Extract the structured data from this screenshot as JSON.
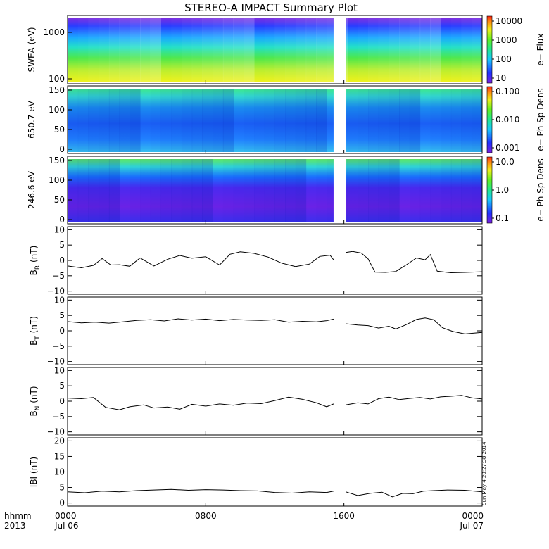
{
  "chart_data": {
    "title": "STEREO-A IMPACT Summary Plot",
    "stamp": "Sun May 4 20:27:38 2014",
    "time_axis": {
      "row1": [
        "0000",
        "0800",
        "1600",
        "0000"
      ],
      "row2": [
        "Jul 06",
        "",
        "",
        "Jul 07"
      ],
      "corner": [
        "hhmm",
        "2013"
      ],
      "range_hours": [
        0,
        24
      ],
      "data_gap_hours": [
        15.4,
        16.1
      ]
    },
    "panels": [
      {
        "type": "heatmap",
        "ylabel": "SWEA (eV)",
        "yscale": "log",
        "ylim": [
          100,
          1700
        ],
        "yticks": [
          "1000",
          "100"
        ],
        "colorbar": {
          "label": "e− Flux",
          "scale": "log",
          "ticks": [
            "10000",
            "1000",
            "100",
            "10"
          ]
        }
      },
      {
        "type": "heatmap",
        "ylabel": "650.7 eV",
        "ylim": [
          0,
          180
        ],
        "yticks": [
          "150",
          "100",
          "50",
          "0"
        ],
        "colorbar": {
          "label": "e− Ph Sp Dens",
          "scale": "log",
          "ticks": [
            "0.100",
            "0.010",
            "0.001"
          ]
        }
      },
      {
        "type": "heatmap",
        "ylabel": "246.6 eV",
        "ylim": [
          0,
          180
        ],
        "yticks": [
          "150",
          "100",
          "50",
          "0"
        ],
        "colorbar": {
          "label": "e− Ph Sp Dens",
          "scale": "log",
          "ticks": [
            "10.0",
            "1.0",
            "0.1"
          ]
        }
      },
      {
        "type": "line",
        "ylabel_main": "B",
        "ylabel_sub": "R",
        "ylabel_unit": "(nT)",
        "ylim": [
          -11,
          11
        ],
        "yticks": [
          "10",
          "5",
          "0",
          "−5",
          "−10"
        ],
        "x": [
          0,
          0.8,
          1.5,
          2.0,
          2.5,
          3.0,
          3.6,
          4.2,
          5.0,
          5.8,
          6.5,
          7.2,
          8.0,
          8.8,
          9.4,
          10.0,
          10.8,
          11.6,
          12.4,
          13.2,
          14.0,
          14.6,
          15.2,
          15.4,
          16.1,
          16.5,
          17.0,
          17.4,
          17.8,
          18.4,
          19.0,
          19.6,
          20.2,
          20.7,
          21.0,
          21.4,
          22.2,
          23.0,
          24.0
        ],
        "y": [
          -1.8,
          -2.4,
          -1.6,
          0.6,
          -1.5,
          -1.4,
          -1.9,
          0.8,
          -1.8,
          0.4,
          1.6,
          0.7,
          1.2,
          -1.5,
          2.0,
          2.8,
          2.3,
          1.1,
          -0.9,
          -2.0,
          -1.2,
          1.3,
          1.7,
          0.2,
          2.6,
          2.9,
          2.4,
          0.5,
          -3.8,
          -3.9,
          -3.6,
          -1.5,
          0.8,
          0.2,
          1.9,
          -3.5,
          -4.0,
          -3.9,
          -3.7
        ]
      },
      {
        "type": "line",
        "ylabel_main": "B",
        "ylabel_sub": "T",
        "ylabel_unit": "(nT)",
        "ylim": [
          -11,
          11
        ],
        "yticks": [
          "10",
          "5",
          "0",
          "−5",
          "−10"
        ],
        "x": [
          0,
          0.8,
          1.6,
          2.4,
          3.2,
          4.0,
          4.8,
          5.6,
          6.4,
          7.2,
          8.0,
          8.8,
          9.6,
          10.4,
          11.2,
          12.0,
          12.8,
          13.6,
          14.4,
          15.0,
          15.4,
          16.1,
          16.8,
          17.4,
          18.0,
          18.6,
          19.0,
          19.6,
          20.2,
          20.7,
          21.2,
          21.7,
          22.3,
          23.0,
          24.0
        ],
        "y": [
          3.0,
          2.6,
          2.8,
          2.5,
          2.9,
          3.4,
          3.6,
          3.2,
          3.9,
          3.5,
          3.8,
          3.3,
          3.7,
          3.5,
          3.4,
          3.6,
          2.8,
          3.1,
          2.9,
          3.3,
          3.8,
          2.3,
          1.9,
          1.7,
          0.9,
          1.5,
          0.6,
          2.0,
          3.7,
          4.2,
          3.6,
          1.0,
          -0.2,
          -1.0,
          -0.5
        ]
      },
      {
        "type": "line",
        "ylabel_main": "B",
        "ylabel_sub": "N",
        "ylabel_unit": "(nT)",
        "ylim": [
          -11,
          11
        ],
        "yticks": [
          "10",
          "5",
          "0",
          "−5",
          "−10"
        ],
        "x": [
          0,
          0.8,
          1.5,
          2.2,
          3.0,
          3.6,
          4.4,
          5.0,
          5.8,
          6.5,
          7.2,
          8.0,
          8.8,
          9.6,
          10.4,
          11.2,
          12.0,
          12.8,
          13.6,
          14.4,
          15.0,
          15.4,
          16.1,
          16.8,
          17.4,
          18.0,
          18.6,
          19.2,
          19.8,
          20.4,
          21.0,
          21.6,
          22.2,
          22.8,
          23.4,
          24.0
        ],
        "y": [
          1.0,
          0.8,
          1.2,
          -2.0,
          -2.8,
          -1.8,
          -1.2,
          -2.2,
          -1.9,
          -2.6,
          -1.0,
          -1.6,
          -0.9,
          -1.3,
          -0.6,
          -0.8,
          0.2,
          1.3,
          0.6,
          -0.5,
          -1.8,
          -0.9,
          -1.2,
          -0.5,
          -0.9,
          0.8,
          1.3,
          0.5,
          0.9,
          1.2,
          0.7,
          1.4,
          1.6,
          1.9,
          1.1,
          0.7
        ]
      },
      {
        "type": "line",
        "ylabel_main": "IBI",
        "ylabel_sub": "",
        "ylabel_unit": "(nT)",
        "ylim": [
          -1,
          21
        ],
        "yticks": [
          "20",
          "15",
          "10",
          "5",
          "0"
        ],
        "x": [
          0,
          1.0,
          2.0,
          3.0,
          4.0,
          5.0,
          6.0,
          7.0,
          8.0,
          9.0,
          10.0,
          11.0,
          12.0,
          13.0,
          14.0,
          15.0,
          15.4,
          16.1,
          16.8,
          17.5,
          18.2,
          18.8,
          19.4,
          20.0,
          20.6,
          21.2,
          22.0,
          23.0,
          24.0
        ],
        "y": [
          3.6,
          3.3,
          3.8,
          3.6,
          4.0,
          4.2,
          4.4,
          4.1,
          4.3,
          4.2,
          4.0,
          3.9,
          3.4,
          3.2,
          3.6,
          3.4,
          3.8,
          3.6,
          2.4,
          3.1,
          3.5,
          2.0,
          3.1,
          3.0,
          3.8,
          4.0,
          4.2,
          4.1,
          3.6
        ]
      }
    ]
  }
}
